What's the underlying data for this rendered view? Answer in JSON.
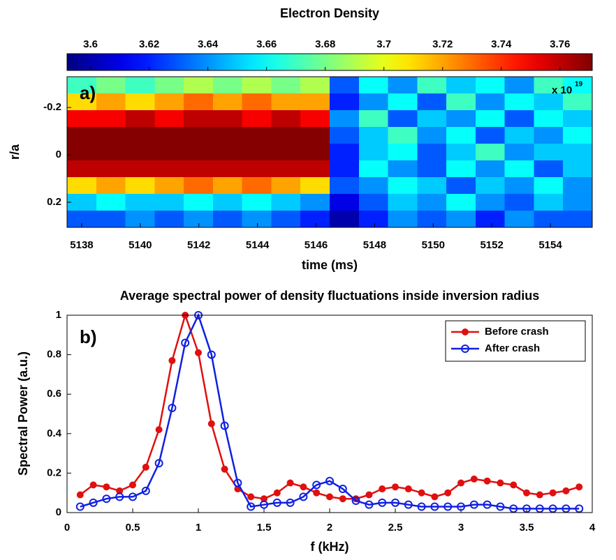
{
  "chart_data": [
    {
      "type": "heatmap",
      "title": "Electron Density",
      "panel_label": "a)",
      "x_label": "time (ms)",
      "y_label": "r/a",
      "colormap": "jet",
      "colorbar_exponent_label": "x 10",
      "colorbar_exponent": "19",
      "xlim": [
        5137.5,
        5155.43
      ],
      "xticks": [
        5138,
        5140,
        5142,
        5144,
        5146,
        5148,
        5150,
        5152,
        5154
      ],
      "ylim": [
        -0.33,
        0.306
      ],
      "yticks": [
        -0.2,
        0,
        0.2
      ],
      "y_reversed": true,
      "clim": [
        3.592,
        3.771
      ],
      "cticks": [
        3.6,
        3.62,
        3.64,
        3.66,
        3.68,
        3.7,
        3.72,
        3.74,
        3.76
      ],
      "z": [
        [
          3.67,
          3.68,
          3.67,
          3.68,
          3.69,
          3.68,
          3.69,
          3.68,
          3.69,
          3.63,
          3.66,
          3.64,
          3.67,
          3.65,
          3.66,
          3.64,
          3.67,
          3.66
        ],
        [
          3.71,
          3.72,
          3.71,
          3.72,
          3.73,
          3.72,
          3.73,
          3.72,
          3.72,
          3.62,
          3.64,
          3.66,
          3.63,
          3.67,
          3.64,
          3.66,
          3.65,
          3.67
        ],
        [
          3.75,
          3.75,
          3.76,
          3.75,
          3.76,
          3.76,
          3.75,
          3.76,
          3.75,
          3.64,
          3.67,
          3.63,
          3.65,
          3.64,
          3.66,
          3.63,
          3.66,
          3.65
        ],
        [
          3.77,
          3.77,
          3.77,
          3.77,
          3.77,
          3.77,
          3.77,
          3.77,
          3.77,
          3.63,
          3.65,
          3.67,
          3.64,
          3.66,
          3.63,
          3.65,
          3.64,
          3.66
        ],
        [
          3.77,
          3.77,
          3.77,
          3.77,
          3.77,
          3.77,
          3.77,
          3.77,
          3.77,
          3.62,
          3.65,
          3.66,
          3.63,
          3.65,
          3.67,
          3.64,
          3.65,
          3.65
        ],
        [
          3.76,
          3.76,
          3.76,
          3.76,
          3.76,
          3.76,
          3.76,
          3.76,
          3.76,
          3.62,
          3.66,
          3.64,
          3.63,
          3.66,
          3.64,
          3.66,
          3.63,
          3.65
        ],
        [
          3.71,
          3.72,
          3.71,
          3.72,
          3.73,
          3.72,
          3.73,
          3.72,
          3.71,
          3.63,
          3.64,
          3.66,
          3.65,
          3.63,
          3.65,
          3.64,
          3.66,
          3.64
        ],
        [
          3.65,
          3.66,
          3.65,
          3.65,
          3.66,
          3.65,
          3.66,
          3.65,
          3.64,
          3.61,
          3.63,
          3.65,
          3.64,
          3.66,
          3.64,
          3.63,
          3.65,
          3.64
        ],
        [
          3.63,
          3.63,
          3.64,
          3.63,
          3.64,
          3.63,
          3.64,
          3.63,
          3.62,
          3.6,
          3.62,
          3.64,
          3.63,
          3.64,
          3.62,
          3.64,
          3.63,
          3.63
        ]
      ]
    },
    {
      "type": "line",
      "title": "Average spectral power of density fluctuations inside inversion radius",
      "panel_label": "b)",
      "x_label": "f (kHz)",
      "y_label": "Spectral Power (a.u.)",
      "xlim": [
        0,
        4
      ],
      "xticks": [
        0,
        0.5,
        1,
        1.5,
        2,
        2.5,
        3,
        3.5,
        4
      ],
      "ylim": [
        0,
        1
      ],
      "yticks": [
        0,
        0.2,
        0.4,
        0.6,
        0.8,
        1
      ],
      "legend": "top-right",
      "x": [
        0.1,
        0.2,
        0.3,
        0.4,
        0.5,
        0.6,
        0.7,
        0.8,
        0.9,
        1.0,
        1.1,
        1.2,
        1.3,
        1.4,
        1.5,
        1.6,
        1.7,
        1.8,
        1.9,
        2.0,
        2.1,
        2.2,
        2.3,
        2.4,
        2.5,
        2.6,
        2.7,
        2.8,
        2.9,
        3.0,
        3.1,
        3.2,
        3.3,
        3.4,
        3.5,
        3.6,
        3.7,
        3.8,
        3.9
      ],
      "series": [
        {
          "name": "Before crash",
          "color": "#e01010",
          "marker": "filled",
          "values": [
            0.09,
            0.14,
            0.13,
            0.11,
            0.14,
            0.23,
            0.42,
            0.77,
            1.0,
            0.81,
            0.45,
            0.22,
            0.12,
            0.08,
            0.07,
            0.1,
            0.15,
            0.13,
            0.1,
            0.08,
            0.07,
            0.07,
            0.09,
            0.12,
            0.13,
            0.12,
            0.1,
            0.08,
            0.1,
            0.15,
            0.17,
            0.16,
            0.15,
            0.14,
            0.1,
            0.09,
            0.1,
            0.11,
            0.13
          ]
        },
        {
          "name": "After crash",
          "color": "#1020e0",
          "marker": "open",
          "values": [
            0.03,
            0.05,
            0.07,
            0.08,
            0.08,
            0.11,
            0.25,
            0.53,
            0.86,
            1.0,
            0.8,
            0.44,
            0.15,
            0.03,
            0.04,
            0.05,
            0.05,
            0.08,
            0.14,
            0.16,
            0.12,
            0.06,
            0.04,
            0.05,
            0.05,
            0.04,
            0.03,
            0.03,
            0.03,
            0.03,
            0.04,
            0.04,
            0.03,
            0.02,
            0.02,
            0.02,
            0.02,
            0.02,
            0.02
          ]
        }
      ]
    }
  ]
}
